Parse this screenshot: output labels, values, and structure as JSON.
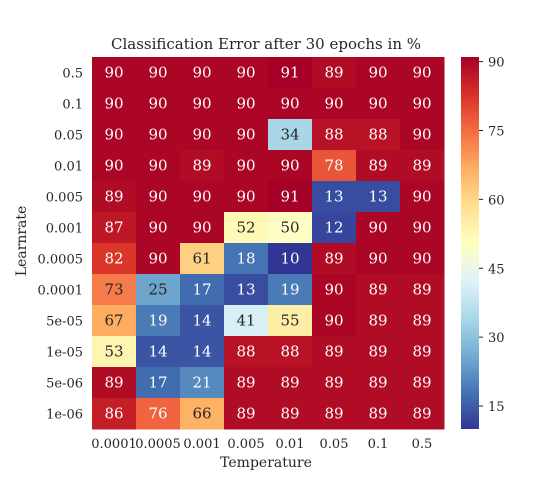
{
  "chart_data": {
    "type": "heatmap",
    "title": "Classification Error after 30 epochs in %",
    "xlabel": "Temperature",
    "ylabel": "Learnrate",
    "x_categories": [
      "0.0001",
      "0.0005",
      "0.001",
      "0.005",
      "0.01",
      "0.05",
      "0.1",
      "0.5"
    ],
    "y_categories": [
      "0.5",
      "0.1",
      "0.05",
      "0.01",
      "0.005",
      "0.001",
      "0.0005",
      "0.0001",
      "5e-05",
      "1e-05",
      "5e-06",
      "1e-06"
    ],
    "values": [
      [
        90,
        90,
        90,
        90,
        91,
        89,
        90,
        90
      ],
      [
        90,
        90,
        90,
        90,
        90,
        90,
        90,
        90
      ],
      [
        90,
        90,
        90,
        90,
        34,
        88,
        88,
        90
      ],
      [
        90,
        90,
        89,
        90,
        90,
        78,
        89,
        89
      ],
      [
        89,
        90,
        90,
        90,
        91,
        13,
        13,
        90
      ],
      [
        87,
        90,
        90,
        52,
        50,
        12,
        90,
        90
      ],
      [
        82,
        90,
        61,
        18,
        10,
        89,
        90,
        90
      ],
      [
        73,
        25,
        17,
        13,
        19,
        90,
        89,
        89
      ],
      [
        67,
        19,
        14,
        41,
        55,
        90,
        89,
        89
      ],
      [
        53,
        14,
        14,
        88,
        88,
        89,
        89,
        89
      ],
      [
        89,
        17,
        21,
        89,
        89,
        89,
        89,
        89
      ],
      [
        86,
        76,
        66,
        89,
        89,
        89,
        89,
        89
      ]
    ],
    "colormap": "RdYlBu_r",
    "vmin": 10,
    "vmax": 91,
    "colorbar_ticks": [
      15,
      30,
      45,
      60,
      75,
      90
    ],
    "annotations": true
  }
}
